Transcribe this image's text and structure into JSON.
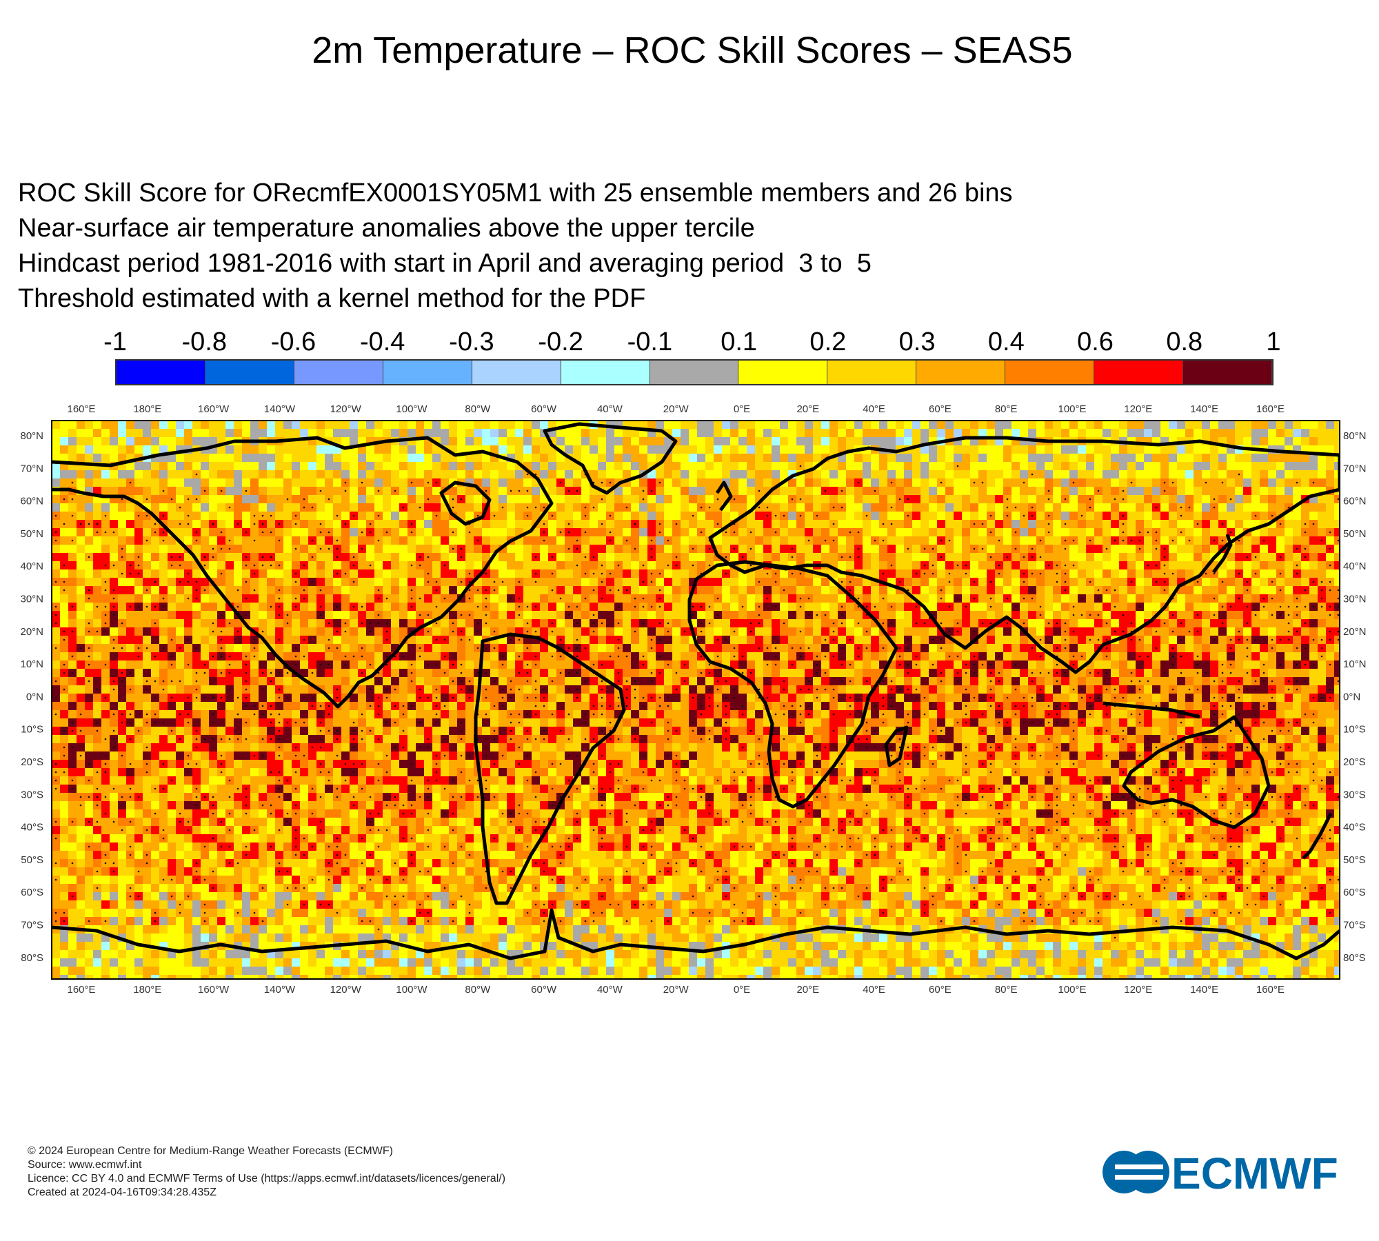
{
  "title": "2m Temperature – ROC Skill Scores – SEAS5",
  "subtitle_lines": [
    "ROC Skill Score for ORecmfEX0001SY05M1 with 25 ensemble members and 26 bins",
    "Near-surface air temperature anomalies above the upper tercile",
    "Hindcast period 1981-2016 with start in April and averaging period  3 to  5",
    "Threshold estimated with a kernel method for the PDF"
  ],
  "colorbar": {
    "ticks": [
      "-1",
      "-0.8",
      "-0.6",
      "-0.4",
      "-0.3",
      "-0.2",
      "-0.1",
      "0.1",
      "0.2",
      "0.3",
      "0.4",
      "0.6",
      "0.8",
      "1"
    ],
    "colors": [
      "#0000ff",
      "#0066dd",
      "#7799ff",
      "#66b2ff",
      "#aad4ff",
      "#aaffff",
      "#a9a9a9",
      "#ffff00",
      "#ffd700",
      "#ffaa00",
      "#ff7f00",
      "#ff0000",
      "#6b0014"
    ]
  },
  "map": {
    "lon_labels": [
      "160°E",
      "180°E",
      "160°W",
      "140°W",
      "120°W",
      "100°W",
      "80°W",
      "60°W",
      "40°W",
      "20°W",
      "0°E",
      "20°E",
      "40°E",
      "60°E",
      "80°E",
      "100°E",
      "120°E",
      "140°E",
      "160°E"
    ],
    "lat_labels": [
      "80°N",
      "70°N",
      "60°N",
      "50°N",
      "40°N",
      "30°N",
      "20°N",
      "10°N",
      "0°N",
      "10°S",
      "20°S",
      "30°S",
      "40°S",
      "50°S",
      "60°S",
      "70°S",
      "80°S"
    ]
  },
  "footer": [
    "© 2024 European Centre for Medium-Range Weather Forecasts (ECMWF)",
    "Source: www.ecmwf.int",
    "Licence: CC BY 4.0 and ECMWF Terms of Use (https://apps.ecmwf.int/datasets/licences/general/)",
    "Created at 2024-04-16T09:34:28.435Z"
  ],
  "logo_text": "ECMWF"
}
